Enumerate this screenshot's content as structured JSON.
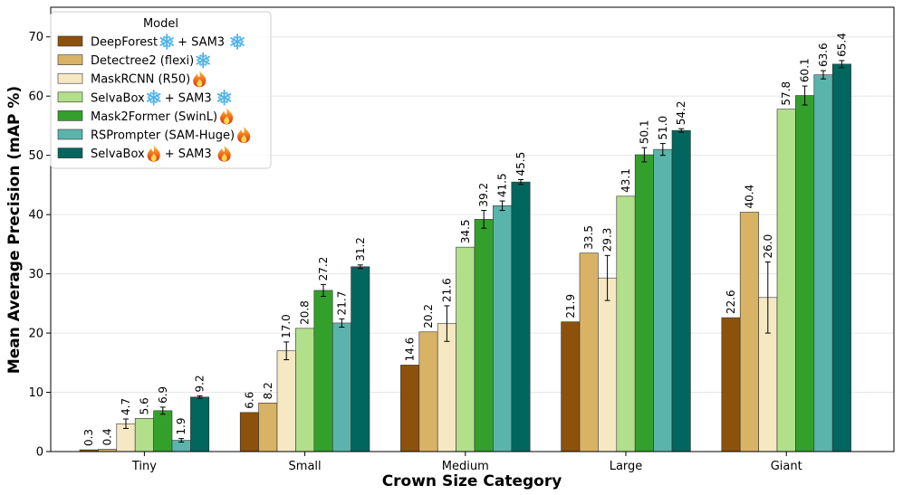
{
  "chart_data": {
    "type": "bar",
    "xlabel": "Crown Size Category",
    "ylabel": "Mean Average Precision (mAP %)",
    "ylim": [
      0,
      75
    ],
    "yticks": [
      0,
      10,
      20,
      30,
      40,
      50,
      60,
      70
    ],
    "grid": "horizontal",
    "categories": [
      "Tiny",
      "Small",
      "Medium",
      "Large",
      "Giant"
    ],
    "legend": {
      "title": "Model",
      "placement": "upper-left"
    },
    "series": [
      {
        "name": "DeepForest",
        "suffix": "+ SAM3",
        "marks": [
          "snowflake",
          "snowflake"
        ],
        "color": "#8c510a",
        "values": [
          0.3,
          6.6,
          14.6,
          21.9,
          22.6
        ],
        "errors": [
          0,
          0,
          0,
          0,
          0
        ]
      },
      {
        "name": "Detectree2 (flexi)",
        "suffix": "",
        "marks": [
          "snowflake"
        ],
        "color": "#d8b365",
        "values": [
          0.4,
          8.2,
          20.2,
          33.5,
          40.4
        ],
        "errors": [
          0,
          0,
          0,
          0,
          0
        ]
      },
      {
        "name": "MaskRCNN (R50)",
        "suffix": "",
        "marks": [
          "fire"
        ],
        "color": "#f6e8c3",
        "values": [
          4.7,
          17.0,
          21.6,
          29.3,
          26.0
        ],
        "errors": [
          0.8,
          1.5,
          3.0,
          3.8,
          6.0
        ]
      },
      {
        "name": "SelvaBox",
        "suffix": "+ SAM3",
        "marks": [
          "snowflake",
          "snowflake"
        ],
        "color": "#b2df8a",
        "values": [
          5.6,
          20.8,
          34.5,
          43.1,
          57.8
        ],
        "errors": [
          0,
          0,
          0,
          0,
          0
        ]
      },
      {
        "name": "Mask2Former (SwinL)",
        "suffix": "",
        "marks": [
          "fire"
        ],
        "color": "#33a02c",
        "values": [
          6.9,
          27.2,
          39.2,
          50.1,
          60.1
        ],
        "errors": [
          0.6,
          1.0,
          1.5,
          1.2,
          1.6
        ]
      },
      {
        "name": "RSPrompter (SAM-Huge)",
        "suffix": "",
        "marks": [
          "fire"
        ],
        "color": "#5ab4ac",
        "values": [
          1.9,
          21.7,
          41.5,
          51.0,
          63.6
        ],
        "errors": [
          0.3,
          0.7,
          0.8,
          1.0,
          0.7
        ]
      },
      {
        "name": "SelvaBox",
        "suffix": "+ SAM3",
        "marks": [
          "fire",
          "fire"
        ],
        "color": "#01665e",
        "values": [
          9.2,
          31.2,
          45.5,
          54.2,
          65.4
        ],
        "errors": [
          0.2,
          0.3,
          0.4,
          0.3,
          0.6
        ]
      }
    ]
  }
}
